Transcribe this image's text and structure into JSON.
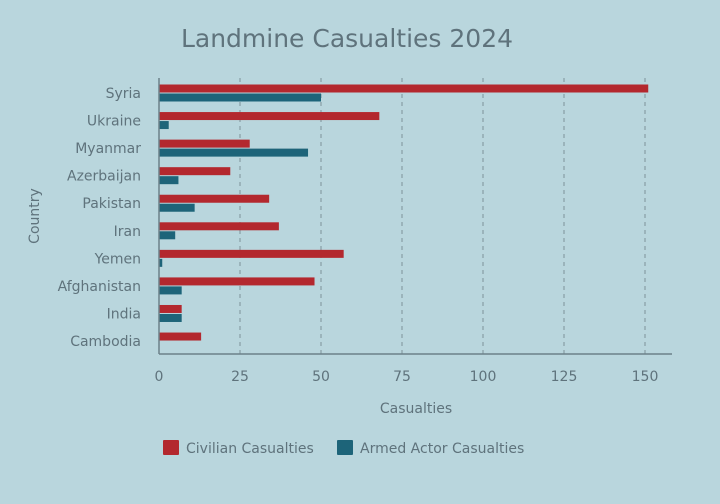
{
  "chart_data": {
    "type": "bar",
    "orientation": "horizontal",
    "title": "Landmine Casualties 2024",
    "xlabel": "Casualties",
    "ylabel": "Country",
    "categories": [
      "Syria",
      "Ukraine",
      "Myanmar",
      "Azerbaijan",
      "Pakistan",
      "Iran",
      "Yemen",
      "Afghanistan",
      "India",
      "Cambodia"
    ],
    "series": [
      {
        "name": "Civilian Casualties",
        "color": "#b3282e",
        "values": [
          151,
          68,
          28,
          22,
          34,
          37,
          57,
          48,
          7,
          13
        ]
      },
      {
        "name": "Armed Actor Casualties",
        "color": "#1d6479",
        "values": [
          50,
          3,
          46,
          6,
          11,
          5,
          1,
          7,
          7,
          0
        ]
      }
    ],
    "xlim": [
      0,
      158
    ],
    "xticks": [
      0,
      25,
      50,
      75,
      100,
      125,
      150
    ],
    "grid": "vertical dashed",
    "legend_position": "bottom"
  }
}
